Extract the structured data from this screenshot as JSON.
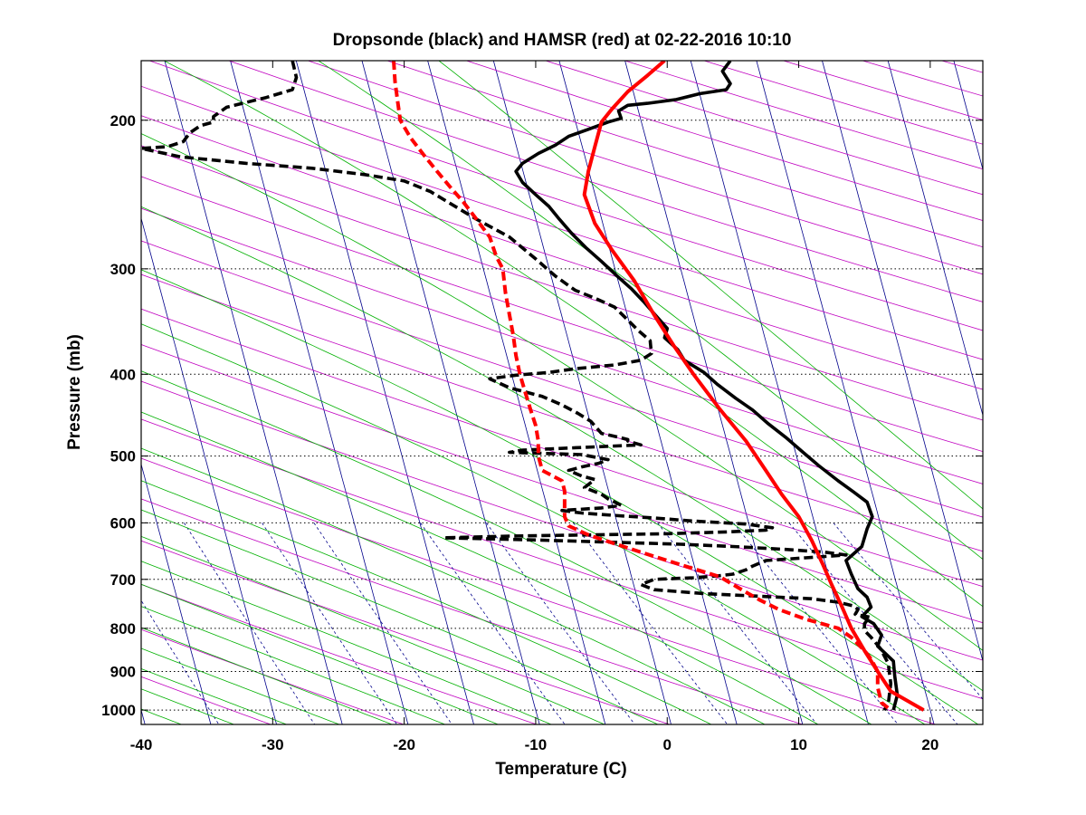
{
  "chart_data": {
    "type": "line",
    "title": "Dropsonde (black) and HAMSR (red) at 02-22-2016 10:10",
    "xlabel": "Temperature (C)",
    "ylabel": "Pressure (mb)",
    "xlim": [
      -40,
      24
    ],
    "ylim": [
      1040,
      170
    ],
    "y_scale": "log",
    "x_ticks": [
      -40,
      -30,
      -20,
      -10,
      0,
      10,
      20
    ],
    "y_ticks": [
      200,
      300,
      400,
      500,
      600,
      700,
      800,
      900,
      1000
    ],
    "grid": "dotted horizontal at y ticks",
    "background_lines": [
      "dry adiabats",
      "moist adiabats",
      "isotherms",
      "mixing ratio lines"
    ],
    "colors": {
      "dropsonde": "#000000",
      "hamsr": "#ff0000",
      "dry_adiabat": "#c000c0",
      "moist_adiabat": "#00b000",
      "isotherm": "#00008b",
      "mixing_ratio": "#00008b",
      "grid": "#000000"
    },
    "series": [
      {
        "name": "Dropsonde",
        "style": "solid",
        "color": "#000000",
        "points": [
          [
            4.8,
            170
          ],
          [
            4.2,
            175
          ],
          [
            4.8,
            181
          ],
          [
            4.5,
            184
          ],
          [
            2.5,
            186
          ],
          [
            0.7,
            189
          ],
          [
            -1.5,
            191
          ],
          [
            -3,
            192
          ],
          [
            -3.7,
            195
          ],
          [
            -3.5,
            199
          ],
          [
            -4.5,
            201
          ],
          [
            -6,
            205
          ],
          [
            -7.5,
            209
          ],
          [
            -8.5,
            214
          ],
          [
            -9.8,
            219
          ],
          [
            -11,
            225
          ],
          [
            -11.5,
            230
          ],
          [
            -11,
            237
          ],
          [
            -10,
            245
          ],
          [
            -9,
            253
          ],
          [
            -8.2,
            262
          ],
          [
            -7.3,
            272
          ],
          [
            -6.2,
            283
          ],
          [
            -5,
            294
          ],
          [
            -3.8,
            306
          ],
          [
            -2.7,
            317
          ],
          [
            -1.8,
            328
          ],
          [
            -1,
            339
          ],
          [
            0,
            353
          ],
          [
            -0.2,
            362
          ],
          [
            0.8,
            374
          ],
          [
            1.3,
            385
          ],
          [
            2.8,
            398
          ],
          [
            3.8,
            411
          ],
          [
            5.2,
            427
          ],
          [
            6.5,
            441
          ],
          [
            7.7,
            458
          ],
          [
            9,
            475
          ],
          [
            10,
            490
          ],
          [
            11.5,
            513
          ],
          [
            13,
            535
          ],
          [
            14.2,
            552
          ],
          [
            15.2,
            567
          ],
          [
            15.6,
            590
          ],
          [
            15.2,
            610
          ],
          [
            14.8,
            640
          ],
          [
            13.6,
            665
          ],
          [
            14,
            690
          ],
          [
            14.5,
            718
          ],
          [
            15.2,
            735
          ],
          [
            15.5,
            755
          ],
          [
            14.8,
            775
          ],
          [
            15.7,
            790
          ],
          [
            16.3,
            815
          ],
          [
            16,
            840
          ],
          [
            17.2,
            875
          ],
          [
            17.3,
            910
          ],
          [
            17.5,
            960
          ],
          [
            17.2,
            1000
          ]
        ]
      },
      {
        "name": "Dropsonde",
        "style": "dashed",
        "color": "#000000",
        "points": [
          [
            -28.5,
            170
          ],
          [
            -28.2,
            178
          ],
          [
            -28.5,
            184
          ],
          [
            -30.5,
            188
          ],
          [
            -33.5,
            193
          ],
          [
            -34.5,
            198
          ],
          [
            -34.5,
            201
          ],
          [
            -35.5,
            203
          ],
          [
            -36.3,
            207
          ],
          [
            -36.8,
            212
          ],
          [
            -38,
            215
          ],
          [
            -40,
            216
          ],
          [
            -37,
            221
          ],
          [
            -32,
            225
          ],
          [
            -27,
            228
          ],
          [
            -23,
            232
          ],
          [
            -20,
            236
          ],
          [
            -18,
            243
          ],
          [
            -16.5,
            251
          ],
          [
            -14.5,
            262
          ],
          [
            -12,
            275
          ],
          [
            -10,
            292
          ],
          [
            -8.5,
            306
          ],
          [
            -7,
            318
          ],
          [
            -5.5,
            325
          ],
          [
            -4,
            333
          ],
          [
            -3,
            345
          ],
          [
            -2.2,
            355
          ],
          [
            -1.3,
            365
          ],
          [
            -1.2,
            378
          ],
          [
            -2,
            385
          ],
          [
            -4,
            390
          ],
          [
            -7,
            394
          ],
          [
            -9,
            398
          ],
          [
            -11.5,
            401
          ],
          [
            -13.5,
            405
          ],
          [
            -12,
            415
          ],
          [
            -9.5,
            425
          ],
          [
            -8,
            435
          ],
          [
            -6.8,
            445
          ],
          [
            -5.8,
            455
          ],
          [
            -5,
            470
          ],
          [
            -3.7,
            475
          ],
          [
            -3,
            478
          ],
          [
            -3,
            480
          ],
          [
            -2,
            485
          ],
          [
            -6,
            488
          ],
          [
            -11,
            492
          ],
          [
            -12,
            495
          ],
          [
            -6.5,
            498
          ],
          [
            -4.5,
            505
          ],
          [
            -5.2,
            510
          ],
          [
            -6.5,
            515
          ],
          [
            -7.5,
            520
          ],
          [
            -6.5,
            528
          ],
          [
            -5.5,
            533
          ],
          [
            -6.3,
            545
          ],
          [
            -5,
            555
          ],
          [
            -4.5,
            562
          ],
          [
            -3.5,
            572
          ],
          [
            -5,
            576
          ],
          [
            -8,
            580
          ],
          [
            -6.5,
            584
          ],
          [
            -4,
            588
          ],
          [
            -1,
            592
          ],
          [
            2,
            597
          ],
          [
            6,
            602
          ],
          [
            8,
            608
          ],
          [
            7.5,
            612
          ],
          [
            4.5,
            615
          ],
          [
            0,
            618
          ],
          [
            -6,
            620
          ],
          [
            -12,
            622
          ],
          [
            -17,
            625
          ],
          [
            -11,
            628
          ],
          [
            -5,
            632
          ],
          [
            1,
            636
          ],
          [
            5,
            640
          ],
          [
            9,
            645
          ],
          [
            12,
            650
          ],
          [
            13.6,
            655
          ],
          [
            10.5,
            660
          ],
          [
            7.5,
            665
          ],
          [
            6.5,
            675
          ],
          [
            6,
            682
          ],
          [
            5,
            690
          ],
          [
            4,
            693
          ],
          [
            2,
            697
          ],
          [
            -1,
            700
          ],
          [
            -2,
            710
          ],
          [
            -1,
            720
          ],
          [
            3,
            728
          ],
          [
            7,
            733
          ],
          [
            11,
            738
          ],
          [
            13,
            745
          ],
          [
            14.2,
            753
          ],
          [
            14.5,
            760
          ],
          [
            14.3,
            770
          ],
          [
            15.4,
            776
          ],
          [
            15,
            790
          ],
          [
            15,
            805
          ],
          [
            15.5,
            820
          ],
          [
            16.2,
            845
          ],
          [
            16.8,
            880
          ],
          [
            17,
            930
          ],
          [
            16.8,
            985
          ],
          [
            16.5,
            1000
          ]
        ]
      },
      {
        "name": "HAMSR",
        "style": "solid",
        "color": "#ff0000",
        "points": [
          [
            -0.2,
            170
          ],
          [
            -1.5,
            177
          ],
          [
            -3,
            185
          ],
          [
            -4.2,
            194
          ],
          [
            -5,
            201
          ],
          [
            -5.5,
            215
          ],
          [
            -6,
            230
          ],
          [
            -6.3,
            245
          ],
          [
            -5.5,
            265
          ],
          [
            -4.2,
            285
          ],
          [
            -2.5,
            310
          ],
          [
            -1,
            340
          ],
          [
            0.5,
            370
          ],
          [
            2,
            400
          ],
          [
            4,
            440
          ],
          [
            6,
            480
          ],
          [
            7.5,
            520
          ],
          [
            8.7,
            555
          ],
          [
            10,
            590
          ],
          [
            11,
            630
          ],
          [
            11.8,
            670
          ],
          [
            12.5,
            710
          ],
          [
            13.3,
            755
          ],
          [
            14,
            800
          ],
          [
            15,
            850
          ],
          [
            16,
            900
          ],
          [
            17,
            950
          ],
          [
            19.5,
            1000
          ]
        ]
      },
      {
        "name": "HAMSR",
        "style": "dashed",
        "color": "#ff0000",
        "points": [
          [
            -20.8,
            170
          ],
          [
            -20.7,
            180
          ],
          [
            -20.5,
            190
          ],
          [
            -20.3,
            200
          ],
          [
            -19.5,
            210
          ],
          [
            -18.5,
            220
          ],
          [
            -17.5,
            230
          ],
          [
            -16.5,
            240
          ],
          [
            -15.5,
            250
          ],
          [
            -14.5,
            262
          ],
          [
            -13.5,
            275
          ],
          [
            -13,
            290
          ],
          [
            -12.5,
            300
          ],
          [
            -12.3,
            320
          ],
          [
            -12,
            340
          ],
          [
            -11.7,
            360
          ],
          [
            -11.5,
            380
          ],
          [
            -11.2,
            400
          ],
          [
            -10.8,
            420
          ],
          [
            -10.4,
            440
          ],
          [
            -10,
            460
          ],
          [
            -9.8,
            480
          ],
          [
            -9.8,
            500
          ],
          [
            -9.5,
            520
          ],
          [
            -8,
            535
          ],
          [
            -7.8,
            550
          ],
          [
            -7.8,
            570
          ],
          [
            -7.8,
            590
          ],
          [
            -7.5,
            605
          ],
          [
            -6,
            620
          ],
          [
            -4,
            635
          ],
          [
            -2,
            650
          ],
          [
            0,
            665
          ],
          [
            2,
            680
          ],
          [
            4,
            695
          ],
          [
            5,
            710
          ],
          [
            6,
            725
          ],
          [
            7,
            740
          ],
          [
            8.5,
            760
          ],
          [
            10.5,
            780
          ],
          [
            13,
            800
          ],
          [
            14,
            820
          ],
          [
            15,
            850
          ],
          [
            15.5,
            870
          ],
          [
            16,
            900
          ],
          [
            16,
            940
          ],
          [
            16.3,
            980
          ],
          [
            17,
            1000
          ]
        ]
      }
    ]
  }
}
